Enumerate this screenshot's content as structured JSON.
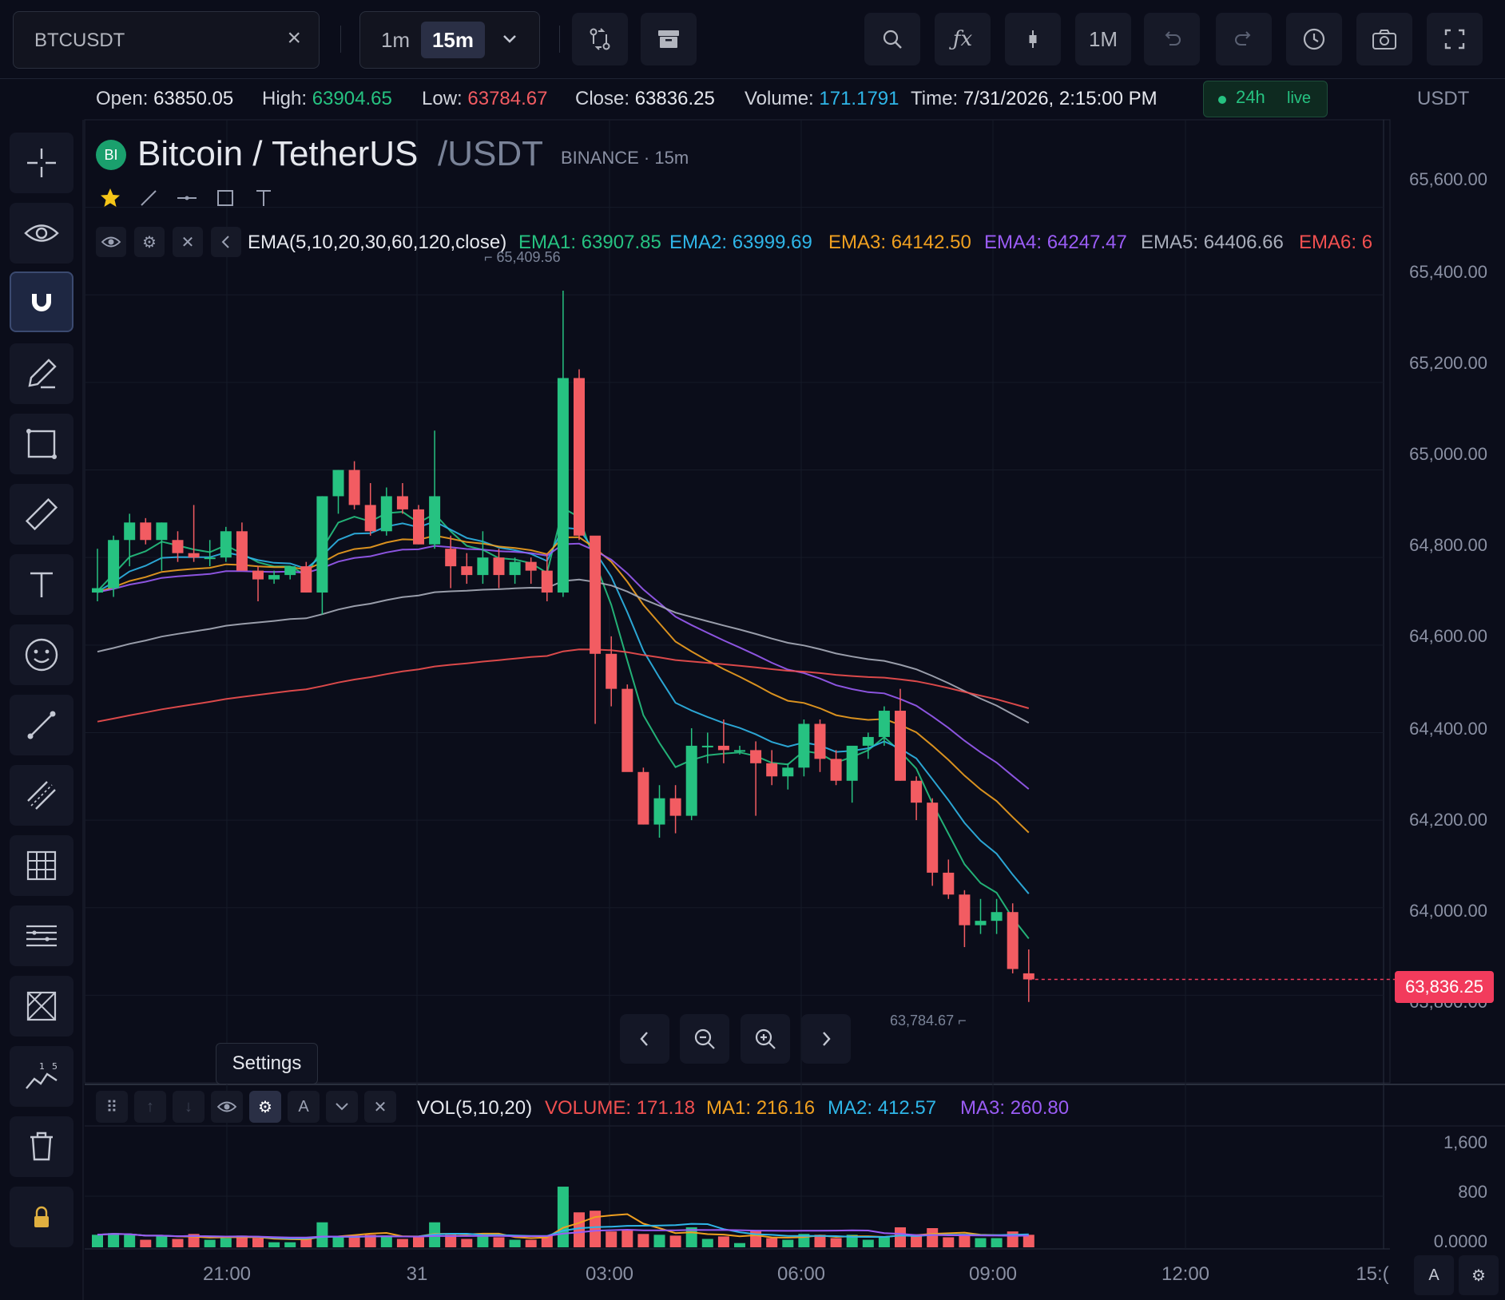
{
  "toolbar": {
    "symbol": "BTCUSDT",
    "timeframes": [
      "1m",
      "15m"
    ],
    "active_timeframe": "15m",
    "range_button": "1M"
  },
  "info": {
    "open_label": "Open:",
    "open": "63850.05",
    "high_label": "High:",
    "high": "63904.65",
    "low_label": "Low:",
    "low": "63784.67",
    "close_label": "Close:",
    "close": "63836.25",
    "volume_label": "Volume:",
    "volume": "171.1791",
    "time_label": "Time:",
    "time": "7/31/2026, 2:15:00 PM",
    "window": "24h",
    "status": "live",
    "currency": "USDT"
  },
  "title": {
    "logo_text": "BI",
    "name": "Bitcoin / TetherUS",
    "quote": "/USDT",
    "exchange": "BINANCE · 15m"
  },
  "ema": {
    "label": "EMA(5,10,20,30,60,120,close)",
    "items": [
      {
        "name": "EMA1:",
        "value": "63907.85",
        "color": "#26c281"
      },
      {
        "name": "EMA2:",
        "value": "63999.69",
        "color": "#2fb6e8"
      },
      {
        "name": "EMA3:",
        "value": "64142.50",
        "color": "#f0a020"
      },
      {
        "name": "EMA4:",
        "value": "64247.47",
        "color": "#9a5cf5"
      },
      {
        "name": "EMA5:",
        "value": "64406.66",
        "color": "#a8adba"
      },
      {
        "name": "EMA6:",
        "value": "6",
        "color": "#f25050"
      }
    ]
  },
  "price_axis": {
    "labels": [
      "65,600.00",
      "65,400.00",
      "65,200.00",
      "65,000.00",
      "64,800.00",
      "64,600.00",
      "64,400.00",
      "64,200.00",
      "64,000.00",
      "63,800.00"
    ],
    "last_price": "63,836.25",
    "high_marker": "65,409.56",
    "low_marker": "63,784.67"
  },
  "volume_panel": {
    "label": "VOL(5,10,20)",
    "items": [
      {
        "name": "VOLUME:",
        "value": "171.18",
        "color": "#f25050"
      },
      {
        "name": "MA1:",
        "value": "216.16",
        "color": "#f0a020"
      },
      {
        "name": "MA2:",
        "value": "412.57",
        "color": "#2fb6e8"
      },
      {
        "name": "MA3:",
        "value": "260.80",
        "color": "#9a5cf5"
      }
    ],
    "axis_labels": [
      "1,600",
      "800",
      "0.0000"
    ]
  },
  "time_axis": [
    "21:00",
    "31",
    "03:00",
    "06:00",
    "09:00",
    "12:00",
    "15:("
  ],
  "tooltip": "Settings",
  "corner": {
    "auto": "A"
  },
  "colors": {
    "up": "#26c281",
    "down": "#f25c62",
    "bg": "#0b0d1a"
  },
  "chart_data": {
    "type": "candlestick",
    "interval": "15m",
    "ylim": [
      63700,
      65700
    ],
    "candles": [
      {
        "o": 64720,
        "h": 64820,
        "l": 64700,
        "c": 64730
      },
      {
        "o": 64730,
        "h": 64850,
        "l": 64710,
        "c": 64840
      },
      {
        "o": 64840,
        "h": 64900,
        "l": 64780,
        "c": 64880
      },
      {
        "o": 64880,
        "h": 64890,
        "l": 64830,
        "c": 64840
      },
      {
        "o": 64840,
        "h": 64880,
        "l": 64770,
        "c": 64880
      },
      {
        "o": 64840,
        "h": 64860,
        "l": 64790,
        "c": 64810
      },
      {
        "o": 64810,
        "h": 64920,
        "l": 64790,
        "c": 64800
      },
      {
        "o": 64800,
        "h": 64840,
        "l": 64780,
        "c": 64800
      },
      {
        "o": 64800,
        "h": 64870,
        "l": 64790,
        "c": 64860
      },
      {
        "o": 64860,
        "h": 64880,
        "l": 64770,
        "c": 64770
      },
      {
        "o": 64770,
        "h": 64780,
        "l": 64700,
        "c": 64750
      },
      {
        "o": 64750,
        "h": 64770,
        "l": 64740,
        "c": 64760
      },
      {
        "o": 64760,
        "h": 64780,
        "l": 64750,
        "c": 64780
      },
      {
        "o": 64780,
        "h": 64790,
        "l": 64720,
        "c": 64720
      },
      {
        "o": 64720,
        "h": 64940,
        "l": 64670,
        "c": 64940
      },
      {
        "o": 64940,
        "h": 65000,
        "l": 64900,
        "c": 65000
      },
      {
        "o": 65000,
        "h": 65020,
        "l": 64910,
        "c": 64920
      },
      {
        "o": 64920,
        "h": 64970,
        "l": 64850,
        "c": 64860
      },
      {
        "o": 64860,
        "h": 64960,
        "l": 64850,
        "c": 64940
      },
      {
        "o": 64940,
        "h": 64970,
        "l": 64900,
        "c": 64910
      },
      {
        "o": 64910,
        "h": 64920,
        "l": 64830,
        "c": 64830
      },
      {
        "o": 64830,
        "h": 65090,
        "l": 64820,
        "c": 64940
      },
      {
        "o": 64820,
        "h": 64850,
        "l": 64730,
        "c": 64780
      },
      {
        "o": 64780,
        "h": 64810,
        "l": 64740,
        "c": 64760
      },
      {
        "o": 64760,
        "h": 64860,
        "l": 64740,
        "c": 64800
      },
      {
        "o": 64800,
        "h": 64820,
        "l": 64730,
        "c": 64760
      },
      {
        "o": 64760,
        "h": 64800,
        "l": 64740,
        "c": 64790
      },
      {
        "o": 64790,
        "h": 64800,
        "l": 64740,
        "c": 64770
      },
      {
        "o": 64770,
        "h": 64810,
        "l": 64700,
        "c": 64720
      },
      {
        "o": 64720,
        "h": 65409.56,
        "l": 64710,
        "c": 65210
      },
      {
        "o": 65210,
        "h": 65230,
        "l": 64840,
        "c": 64850
      },
      {
        "o": 64850,
        "h": 64830,
        "l": 64420,
        "c": 64580
      },
      {
        "o": 64580,
        "h": 64620,
        "l": 64460,
        "c": 64500
      },
      {
        "o": 64500,
        "h": 64510,
        "l": 64330,
        "c": 64310
      },
      {
        "o": 64310,
        "h": 64320,
        "l": 64190,
        "c": 64190
      },
      {
        "o": 64190,
        "h": 64280,
        "l": 64160,
        "c": 64250
      },
      {
        "o": 64250,
        "h": 64280,
        "l": 64170,
        "c": 64210
      },
      {
        "o": 64210,
        "h": 64410,
        "l": 64200,
        "c": 64370
      },
      {
        "o": 64370,
        "h": 64400,
        "l": 64330,
        "c": 64370
      },
      {
        "o": 64370,
        "h": 64430,
        "l": 64330,
        "c": 64360
      },
      {
        "o": 64360,
        "h": 64370,
        "l": 64350,
        "c": 64360
      },
      {
        "o": 64360,
        "h": 64380,
        "l": 64210,
        "c": 64330
      },
      {
        "o": 64330,
        "h": 64360,
        "l": 64280,
        "c": 64300
      },
      {
        "o": 64300,
        "h": 64330,
        "l": 64270,
        "c": 64320
      },
      {
        "o": 64320,
        "h": 64430,
        "l": 64300,
        "c": 64420
      },
      {
        "o": 64420,
        "h": 64430,
        "l": 64310,
        "c": 64340
      },
      {
        "o": 64340,
        "h": 64360,
        "l": 64280,
        "c": 64290
      },
      {
        "o": 64290,
        "h": 64360,
        "l": 64240,
        "c": 64370
      },
      {
        "o": 64370,
        "h": 64400,
        "l": 64340,
        "c": 64390
      },
      {
        "o": 64390,
        "h": 64460,
        "l": 64370,
        "c": 64450
      },
      {
        "o": 64450,
        "h": 64500,
        "l": 64290,
        "c": 64290
      },
      {
        "o": 64290,
        "h": 64300,
        "l": 64200,
        "c": 64240
      },
      {
        "o": 64240,
        "h": 64250,
        "l": 64050,
        "c": 64080
      },
      {
        "o": 64080,
        "h": 64110,
        "l": 64020,
        "c": 64030
      },
      {
        "o": 64030,
        "h": 64040,
        "l": 63910,
        "c": 63960
      },
      {
        "o": 63960,
        "h": 64020,
        "l": 63940,
        "c": 63970
      },
      {
        "o": 63970,
        "h": 64020,
        "l": 63940,
        "c": 63990
      },
      {
        "o": 63990,
        "h": 64010,
        "l": 63850,
        "c": 63860
      },
      {
        "o": 63850.05,
        "h": 63904.65,
        "l": 63784.67,
        "c": 63836.25
      }
    ],
    "volume_ylim": [
      0,
      1800
    ]
  }
}
